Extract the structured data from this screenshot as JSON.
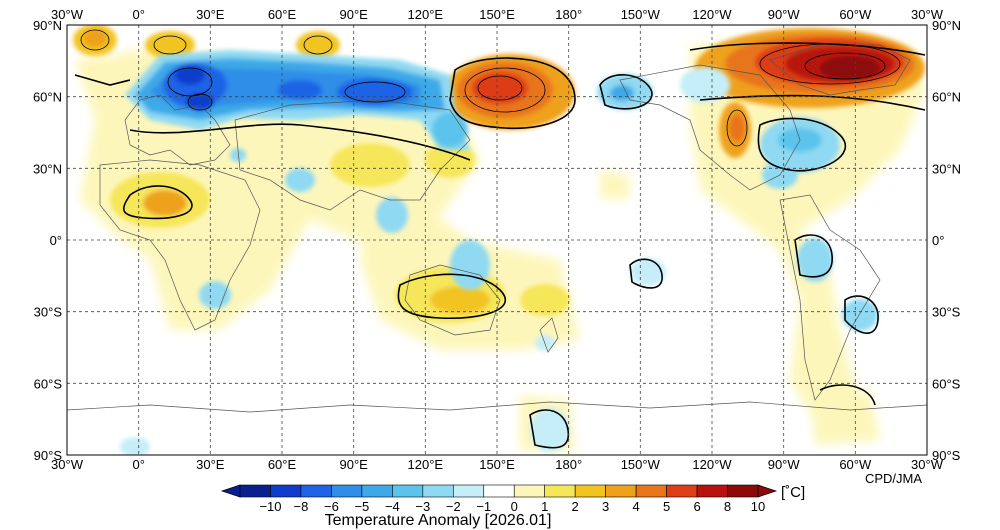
{
  "chart_data": {
    "type": "heatmap",
    "title": "Temperature Anomaly [2026.01]",
    "credit": "CPD/JMA",
    "unit": "[˚C]",
    "x_ticks_top": [
      "30°W",
      "0°",
      "30°E",
      "60°E",
      "90°E",
      "120°E",
      "150°E",
      "180°",
      "150°W",
      "120°W",
      "90°W",
      "60°W",
      "30°W"
    ],
    "x_ticks_bottom": [
      "30°W",
      "0°",
      "30°E",
      "60°E",
      "90°E",
      "120°E",
      "150°E",
      "180°",
      "150°W",
      "120°W",
      "90°W",
      "60°W",
      "30°W"
    ],
    "y_ticks_left": [
      "90°N",
      "60°N",
      "30°N",
      "0°",
      "30°S",
      "60°S",
      "90°S"
    ],
    "y_ticks_right": [
      "90°N",
      "60°N",
      "30°N",
      "0°",
      "30°S",
      "60°S",
      "90°S"
    ],
    "lon_range": [
      -30,
      330
    ],
    "lat_range": [
      -90,
      90
    ],
    "grid": "dashed 30° lines",
    "colorbar": {
      "labels": [
        "−10",
        "−8",
        "−6",
        "−5",
        "−4",
        "−3",
        "−2",
        "−1",
        "0",
        "1",
        "2",
        "3",
        "4",
        "5",
        "6",
        "8",
        "10"
      ],
      "colors": [
        "#0a1f8f",
        "#0e3ccc",
        "#1f63e6",
        "#2f8ee8",
        "#3ea9e8",
        "#5cc4ec",
        "#8fd9f2",
        "#c6eef8",
        "#ffffff",
        "#fdf6b8",
        "#f6e65a",
        "#f2c420",
        "#eea11a",
        "#e8751a",
        "#dd3d17",
        "#b81210",
        "#8c0a0a"
      ]
    },
    "anomaly_regions": [
      {
        "name": "northern-europe-russia-cold",
        "value": -5
      },
      {
        "name": "central-siberia-cold",
        "value": -5
      },
      {
        "name": "yakutia-warm",
        "value": 6
      },
      {
        "name": "canada-greenland-warm",
        "value": 8
      },
      {
        "name": "alaska-cold",
        "value": -3
      },
      {
        "name": "north-america-cold",
        "value": -2
      },
      {
        "name": "sahara-warm",
        "value": 3
      },
      {
        "name": "australia-warm",
        "value": 3
      }
    ]
  }
}
